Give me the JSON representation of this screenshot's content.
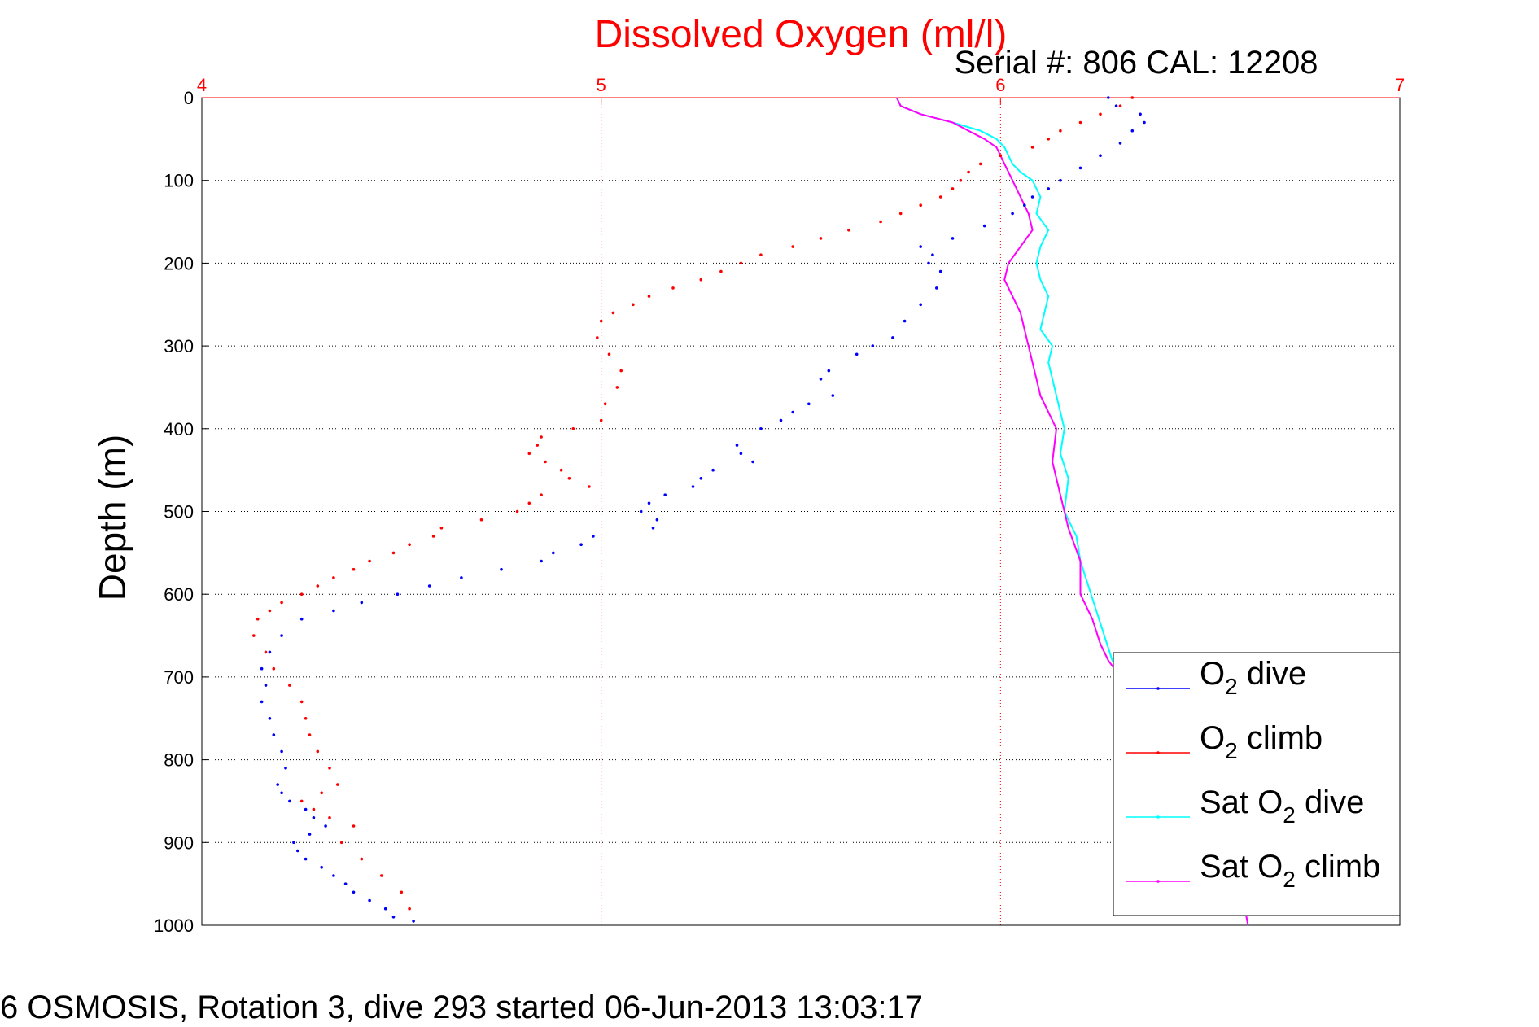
{
  "chart_data": {
    "type": "line",
    "title": "Dissolved Oxygen (ml/l)",
    "subtitle": "Serial #: 806  CAL: 12208",
    "ylabel": "Depth (m)",
    "footer": "6 OSMOSIS, Rotation 3, dive 293 started 06-Jun-2013 13:03:17",
    "xlim": [
      4,
      7
    ],
    "ylim": [
      0,
      1000
    ],
    "y_reversed": true,
    "x_axis_position": "top",
    "xticks": [
      "4",
      "5",
      "6",
      "7"
    ],
    "yticks": [
      "0",
      "100",
      "200",
      "300",
      "400",
      "500",
      "600",
      "700",
      "800",
      "900",
      "1000"
    ],
    "grid": true,
    "legend_position": "bottom-right",
    "series": [
      {
        "name": "O2 dive",
        "legend_main": "O",
        "legend_sub": "2",
        "legend_rest": " dive",
        "color": "#0000ff",
        "style": "dots",
        "x": [
          6.27,
          6.29,
          6.35,
          6.36,
          6.33,
          6.3,
          6.25,
          6.2,
          6.15,
          6.12,
          6.08,
          6.06,
          6.03,
          5.96,
          5.88,
          5.8,
          5.83,
          5.82,
          5.85,
          5.84,
          5.8,
          5.76,
          5.73,
          5.68,
          5.64,
          5.57,
          5.55,
          5.58,
          5.52,
          5.48,
          5.45,
          5.4,
          5.34,
          5.35,
          5.38,
          5.28,
          5.25,
          5.23,
          5.16,
          5.12,
          5.1,
          5.14,
          5.13,
          4.98,
          4.95,
          4.88,
          4.85,
          4.75,
          4.65,
          4.57,
          4.49,
          4.4,
          4.33,
          4.25,
          4.2,
          4.17,
          4.15,
          4.16,
          4.15,
          4.17,
          4.18,
          4.2,
          4.21,
          4.19,
          4.2,
          4.22,
          4.26,
          4.28,
          4.31,
          4.27,
          4.23,
          4.24,
          4.26,
          4.3,
          4.33,
          4.36,
          4.38,
          4.42,
          4.46,
          4.48,
          4.53
        ],
        "y": [
          0,
          10,
          20,
          30,
          40,
          55,
          70,
          85,
          100,
          110,
          120,
          130,
          140,
          155,
          170,
          180,
          190,
          200,
          210,
          230,
          250,
          270,
          290,
          300,
          310,
          330,
          340,
          360,
          370,
          380,
          390,
          400,
          420,
          430,
          440,
          450,
          460,
          470,
          480,
          490,
          500,
          510,
          520,
          530,
          540,
          550,
          560,
          570,
          580,
          590,
          600,
          610,
          620,
          630,
          650,
          670,
          690,
          710,
          730,
          750,
          770,
          790,
          810,
          830,
          840,
          850,
          860,
          870,
          880,
          890,
          900,
          910,
          920,
          930,
          940,
          950,
          960,
          970,
          980,
          990,
          995
        ]
      },
      {
        "name": "O2 climb",
        "legend_main": "O",
        "legend_sub": "2",
        "legend_rest": " climb",
        "color": "#ff0000",
        "style": "dots",
        "x": [
          6.33,
          6.3,
          6.25,
          6.2,
          6.15,
          6.12,
          6.08,
          6.0,
          5.95,
          5.92,
          5.9,
          5.88,
          5.85,
          5.8,
          5.75,
          5.7,
          5.62,
          5.55,
          5.48,
          5.4,
          5.35,
          5.3,
          5.25,
          5.18,
          5.12,
          5.08,
          5.03,
          5.0,
          4.99,
          5.02,
          5.05,
          5.04,
          5.01,
          5.0,
          4.93,
          4.85,
          4.84,
          4.82,
          4.86,
          4.9,
          4.92,
          4.97,
          4.85,
          4.82,
          4.79,
          4.7,
          4.6,
          4.58,
          4.52,
          4.48,
          4.42,
          4.38,
          4.33,
          4.29,
          4.25,
          4.2,
          4.17,
          4.14,
          4.13,
          4.16,
          4.18,
          4.22,
          4.25,
          4.26,
          4.27,
          4.29,
          4.32,
          4.34,
          4.3,
          4.25,
          4.28,
          4.32,
          4.38,
          4.35,
          4.4,
          4.45,
          4.5,
          4.52
        ],
        "y": [
          0,
          10,
          20,
          30,
          40,
          50,
          60,
          70,
          80,
          90,
          100,
          110,
          120,
          130,
          140,
          150,
          160,
          170,
          180,
          190,
          200,
          210,
          220,
          230,
          240,
          250,
          260,
          270,
          290,
          310,
          330,
          350,
          370,
          390,
          400,
          410,
          420,
          430,
          440,
          450,
          460,
          470,
          480,
          490,
          500,
          510,
          520,
          530,
          540,
          550,
          560,
          570,
          580,
          590,
          600,
          610,
          620,
          630,
          650,
          670,
          690,
          710,
          730,
          750,
          770,
          790,
          810,
          830,
          840,
          850,
          860,
          870,
          880,
          900,
          920,
          940,
          960,
          980
        ]
      },
      {
        "name": "Sat O2 dive",
        "legend_main": "Sat O",
        "legend_sub": "2",
        "legend_rest": " dive",
        "color": "#00ffff",
        "style": "line",
        "x": [
          5.74,
          5.75,
          5.8,
          5.88,
          5.95,
          5.99,
          6.01,
          6.02,
          6.03,
          6.05,
          6.08,
          6.1,
          6.09,
          6.12,
          6.1,
          6.09,
          6.1,
          6.12,
          6.11,
          6.1,
          6.13,
          6.12,
          6.13,
          6.14,
          6.16,
          6.15,
          6.17,
          6.16,
          6.19,
          6.2,
          6.22,
          6.24,
          6.26,
          6.28,
          6.3,
          6.35,
          6.4,
          6.45,
          6.5,
          6.55,
          6.58,
          6.6,
          6.62
        ],
        "y": [
          0,
          10,
          20,
          30,
          40,
          50,
          60,
          70,
          80,
          90,
          100,
          120,
          140,
          160,
          180,
          200,
          220,
          240,
          260,
          280,
          300,
          320,
          340,
          360,
          400,
          430,
          460,
          500,
          530,
          560,
          590,
          620,
          650,
          680,
          700,
          720,
          750,
          780,
          820,
          860,
          900,
          950,
          1000
        ]
      },
      {
        "name": "Sat O2 climb",
        "legend_main": "Sat O",
        "legend_sub": "2",
        "legend_rest": " climb",
        "color": "#ff00ff",
        "style": "line",
        "x": [
          5.74,
          5.75,
          5.8,
          5.88,
          5.92,
          5.96,
          5.99,
          6.0,
          6.01,
          6.03,
          6.05,
          6.07,
          6.08,
          6.05,
          6.02,
          6.01,
          6.03,
          6.05,
          6.06,
          6.07,
          6.08,
          6.1,
          6.14,
          6.13,
          6.15,
          6.17,
          6.2,
          6.2,
          6.23,
          6.25,
          6.27,
          6.3,
          6.35,
          6.4,
          6.45,
          6.5,
          6.55,
          6.58,
          6.6,
          6.62
        ],
        "y": [
          0,
          10,
          20,
          30,
          40,
          50,
          60,
          70,
          80,
          100,
          120,
          140,
          160,
          180,
          200,
          220,
          240,
          260,
          280,
          300,
          320,
          360,
          400,
          440,
          480,
          520,
          560,
          600,
          630,
          660,
          680,
          700,
          720,
          750,
          780,
          820,
          860,
          900,
          950,
          1000
        ]
      }
    ]
  }
}
